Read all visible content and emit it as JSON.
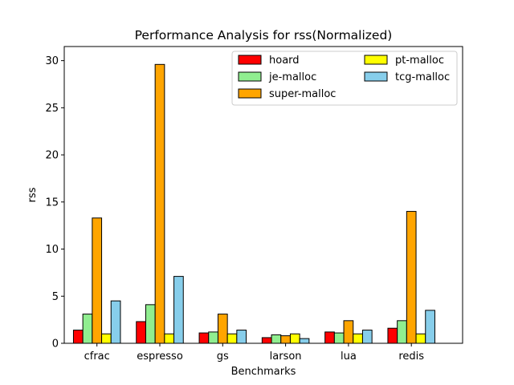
{
  "chart_data": {
    "type": "bar",
    "title": "Performance Analysis for rss(Normalized)",
    "xlabel": "Benchmarks",
    "ylabel": "rss",
    "ylim": [
      0,
      31.5
    ],
    "yticks": [
      0,
      5,
      10,
      15,
      20,
      25,
      30
    ],
    "grid": false,
    "legend_position": "top-right",
    "categories": [
      "cfrac",
      "espresso",
      "gs",
      "larson",
      "lua",
      "redis"
    ],
    "series": [
      {
        "name": "hoard",
        "color": "#ff0000",
        "values": [
          1.4,
          2.3,
          1.1,
          0.6,
          1.2,
          1.6
        ]
      },
      {
        "name": "je-malloc",
        "color": "#90ee90",
        "values": [
          3.1,
          4.1,
          1.2,
          0.9,
          1.1,
          2.4
        ]
      },
      {
        "name": "super-malloc",
        "color": "#ffa500",
        "values": [
          13.3,
          29.6,
          3.1,
          0.8,
          2.4,
          14.0
        ]
      },
      {
        "name": "pt-malloc",
        "color": "#ffff00",
        "values": [
          1.0,
          1.0,
          1.0,
          1.0,
          1.0,
          1.0
        ]
      },
      {
        "name": "tcg-malloc",
        "color": "#87ceeb",
        "values": [
          4.5,
          7.1,
          1.4,
          0.5,
          1.4,
          3.5
        ]
      }
    ]
  }
}
